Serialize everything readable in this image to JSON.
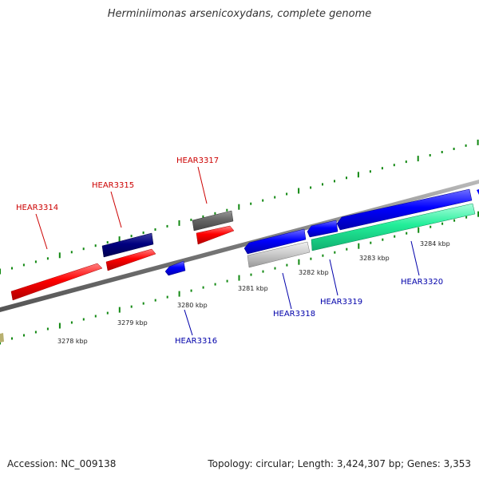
{
  "title": "Herminiimonas arsenicoxydans, complete genome",
  "footer": {
    "accession": "Accession: NC_009138",
    "summary": "Topology: circular; Length: 3,424,307 bp; Genes: 3,353"
  },
  "ruler": [
    {
      "label": "3278 kbp"
    },
    {
      "label": "3279 kbp"
    },
    {
      "label": "3280 kbp"
    },
    {
      "label": "3281 kbp"
    },
    {
      "label": "3282 kbp"
    },
    {
      "label": "3283 kbp"
    },
    {
      "label": "3284 kbp"
    }
  ],
  "genes": [
    {
      "label": "HEAR3314",
      "strand": "+",
      "color": "#ff0000"
    },
    {
      "label": "HEAR3315",
      "strand": "+",
      "color": "#ff0000"
    },
    {
      "label": "HEAR3316",
      "strand": "-",
      "color": "#0000ff"
    },
    {
      "label": "HEAR3317",
      "strand": "+",
      "color": "#ff0000"
    },
    {
      "label": "HEAR3318",
      "strand": "-",
      "color": "#0000ff"
    },
    {
      "label": "HEAR3319",
      "strand": "-",
      "color": "#0000ff"
    },
    {
      "label": "HEAR3320",
      "strand": "-",
      "color": "#0000ff"
    }
  ],
  "colors": {
    "forward_label": "#cc0000",
    "reverse_label": "#0000aa",
    "tick": "#118811",
    "backbone": "#888888",
    "navy_feature": "#000080",
    "grey_feature": "#666666",
    "light_grey_feature": "#cccccc",
    "green_feature": "#22ee99"
  }
}
